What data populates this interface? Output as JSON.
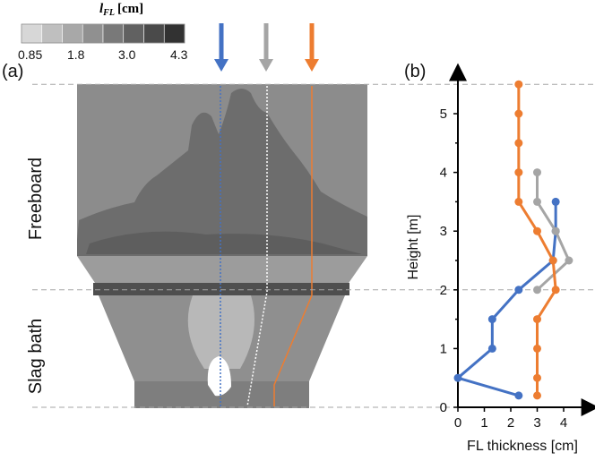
{
  "colorbar": {
    "title": "l",
    "title_sub": "FL",
    "title_unit": "[cm]",
    "ticks": [
      "0.85",
      "1.8",
      "3.0",
      "4.3"
    ],
    "levels": 8
  },
  "left_panel": {
    "label": "(a)",
    "region_labels": {
      "upper": "Freeboard",
      "lower": "Slag bath"
    }
  },
  "chart_data": {
    "type": "line",
    "panel_label": "(b)",
    "xlabel": "FL thickness [cm]",
    "ylabel": "Height [m]",
    "xlim": [
      0,
      4.8
    ],
    "ylim": [
      0,
      5.8
    ],
    "xticks": [
      0,
      1,
      2,
      3,
      4
    ],
    "yticks": [
      0,
      0.5,
      1,
      1.5,
      2,
      2.5,
      3,
      3.5,
      4,
      4.5,
      5
    ],
    "ytick_labels": [
      "0",
      "",
      "1",
      "",
      "2",
      "",
      "3",
      "",
      "4",
      "",
      "5"
    ],
    "reference_heights": [
      2.0,
      5.5
    ],
    "series": [
      {
        "color": "#4472C4",
        "points": [
          [
            2.3,
            0.2
          ],
          [
            0,
            0.5
          ],
          [
            1.3,
            1.0
          ],
          [
            1.3,
            1.5
          ],
          [
            2.3,
            2.0
          ],
          [
            3.6,
            2.5
          ],
          [
            3.7,
            3.0
          ],
          [
            3.7,
            3.5
          ]
        ]
      },
      {
        "color": "#A5A5A5",
        "points": [
          [
            3.0,
            2.0
          ],
          [
            4.2,
            2.5
          ],
          [
            3.7,
            3.0
          ],
          [
            3.0,
            3.5
          ],
          [
            3.0,
            4.0
          ]
        ]
      },
      {
        "color": "#ED7D31",
        "points": [
          [
            3.0,
            0.2
          ],
          [
            3.0,
            0.5
          ],
          [
            3.0,
            1.0
          ],
          [
            3.0,
            1.5
          ],
          [
            3.7,
            2.0
          ],
          [
            3.6,
            2.5
          ],
          [
            3.0,
            3.0
          ],
          [
            2.3,
            3.5
          ],
          [
            2.3,
            4.0
          ],
          [
            2.3,
            4.5
          ],
          [
            2.3,
            5.0
          ],
          [
            2.3,
            5.5
          ]
        ]
      }
    ]
  },
  "probe_colors": [
    "#4472C4",
    "#A5A5A5",
    "#ED7D31"
  ]
}
